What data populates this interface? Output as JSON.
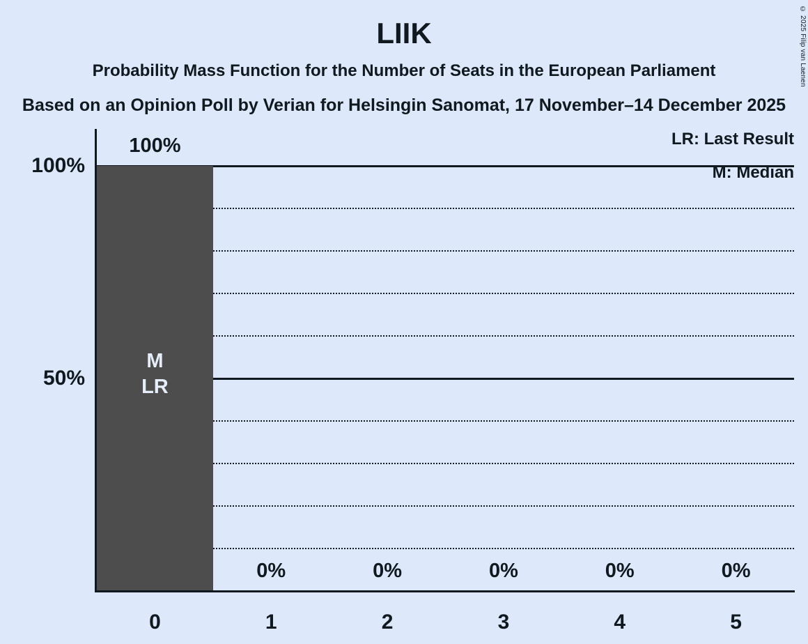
{
  "title": "LIIK",
  "subtitle": "Probability Mass Function for the Number of Seats in the European Parliament",
  "source_line": "Based on an Opinion Poll by Verian for Helsingin Sanomat, 17 November–14 December 2025",
  "copyright": "© 2025 Filip van Laenen",
  "legend": {
    "lr": "LR: Last Result",
    "m": "M: Median"
  },
  "colors": {
    "background": "#dde9fa",
    "bar": "#4d4d4d",
    "text": "#101820",
    "bar_text": "#e7eefb",
    "axis": "#101820"
  },
  "chart_data": {
    "type": "bar",
    "title": "LIIK",
    "xlabel": "",
    "ylabel": "",
    "categories": [
      "0",
      "1",
      "2",
      "3",
      "4",
      "5"
    ],
    "values": [
      100,
      0,
      0,
      0,
      0,
      0
    ],
    "value_labels": [
      "100%",
      "0%",
      "0%",
      "0%",
      "0%",
      "0%"
    ],
    "bar_annotations": [
      [
        "M",
        "LR"
      ],
      [],
      [],
      [],
      [],
      []
    ],
    "ylim": [
      0,
      100
    ],
    "yticks": [
      {
        "value": 100,
        "label": "100%"
      },
      {
        "value": 50,
        "label": "50%"
      }
    ],
    "solid_gridlines": [
      100,
      50
    ],
    "dotted_gridlines": [
      10,
      20,
      30,
      40,
      60,
      70,
      80,
      90
    ],
    "grid": "horizontal",
    "legend_position": "top-right",
    "legend_notes": [
      "LR: Last Result",
      "M: Median"
    ]
  }
}
